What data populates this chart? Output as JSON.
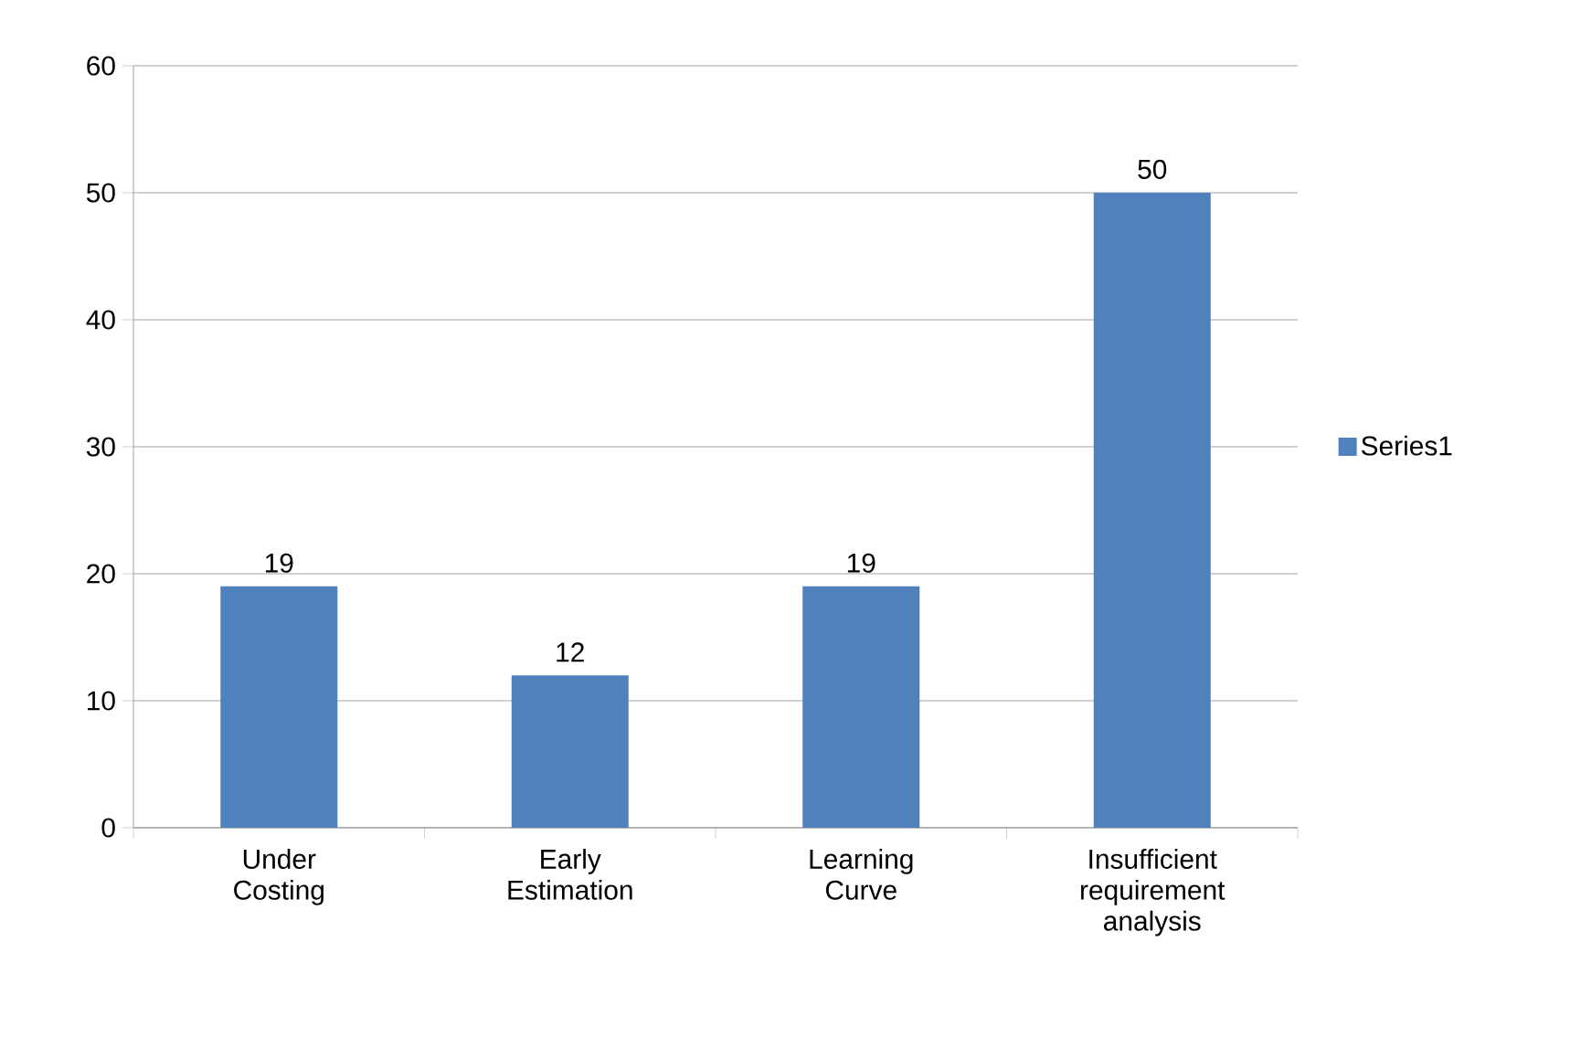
{
  "chart_data": {
    "type": "bar",
    "categories": [
      "Under Costing",
      "Early Estimation",
      "Learning Curve",
      "Insufficient requirement analysis"
    ],
    "series": [
      {
        "name": "Series1",
        "color": "#4f81bd",
        "values": [
          19,
          12,
          19,
          50
        ]
      }
    ],
    "ylim": [
      0,
      60
    ],
    "yticks": [
      0,
      10,
      20,
      30,
      40,
      50,
      60
    ],
    "grid": "y",
    "legend": "right",
    "data_labels": true
  }
}
